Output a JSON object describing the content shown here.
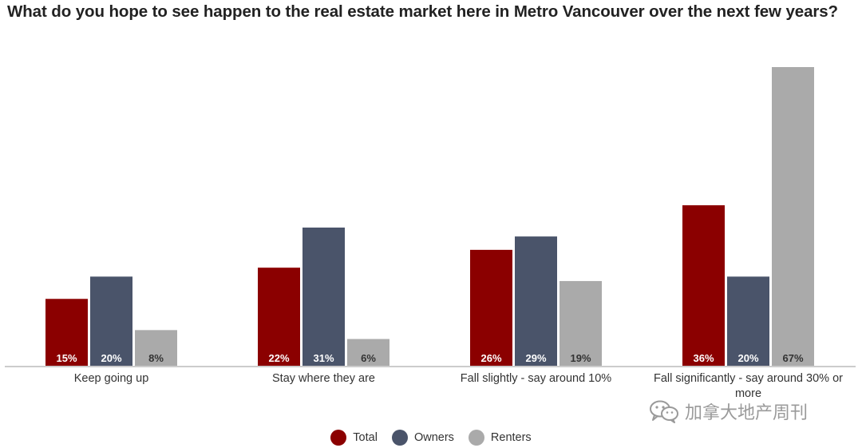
{
  "chart_data": {
    "type": "bar",
    "title": "What do you hope to see happen to the real estate market here in Metro Vancouver over the next few years?",
    "categories": [
      "Keep going up",
      "Stay where they are",
      "Fall slightly - say around 10%",
      "Fall significantly - say around 30% or more"
    ],
    "series": [
      {
        "name": "Total",
        "values": [
          15,
          22,
          26,
          36
        ],
        "labels": [
          "15%",
          "22%",
          "26%",
          "36%"
        ],
        "color": "#8b0000",
        "label_color": "#ffffff"
      },
      {
        "name": "Owners",
        "values": [
          20,
          31,
          29,
          20
        ],
        "labels": [
          "20%",
          "31%",
          "29%",
          "20%"
        ],
        "color": "#4a546a",
        "label_color": "#ffffff"
      },
      {
        "name": "Renters",
        "values": [
          8,
          6,
          19,
          67
        ],
        "labels": [
          "8%",
          "6%",
          "19%",
          "67%"
        ],
        "color": "#aaaaaa",
        "label_color": "#333333"
      }
    ],
    "ylim": [
      0,
      67
    ],
    "grid": false,
    "legend_position": "bottom-center"
  },
  "watermark": {
    "text": "加拿大地产周刊",
    "icon": "wechat-icon"
  }
}
